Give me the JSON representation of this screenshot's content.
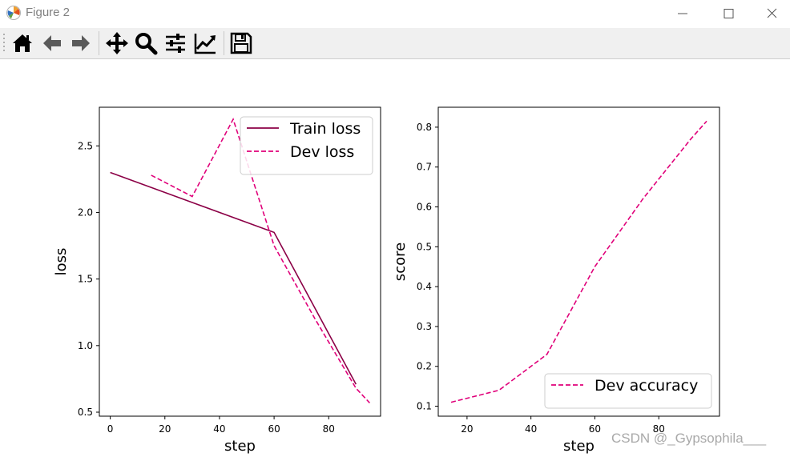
{
  "window": {
    "title": "Figure 2",
    "icon": "matplotlib-logo-icon",
    "controls": [
      "minimize-icon",
      "maximize-icon",
      "close-icon"
    ]
  },
  "toolbar": {
    "buttons": [
      {
        "name": "home",
        "icon": "home-icon"
      },
      {
        "name": "back",
        "icon": "arrow-left-icon"
      },
      {
        "name": "forward",
        "icon": "arrow-right-icon"
      },
      {
        "name": "pan",
        "icon": "move-arrows-icon"
      },
      {
        "name": "zoom",
        "icon": "magnifier-icon"
      },
      {
        "name": "subplots",
        "icon": "sliders-icon"
      },
      {
        "name": "edit-axis",
        "icon": "line-chart-icon"
      },
      {
        "name": "save",
        "icon": "floppy-disk-icon"
      }
    ]
  },
  "colors": {
    "train": "#8b0046",
    "dev": "#e0007a"
  },
  "chart_data": [
    {
      "type": "line",
      "title": "",
      "xlabel": "step",
      "ylabel": "loss",
      "xlim": [
        -4,
        99
      ],
      "ylim": [
        0.47,
        2.79
      ],
      "xticks": [
        0,
        20,
        40,
        60,
        80
      ],
      "yticks": [
        0.5,
        1.0,
        1.5,
        2.0,
        2.5
      ],
      "legend_position": "top-right",
      "grid": false,
      "series": [
        {
          "name": "Train loss",
          "style": "solid",
          "x": [
            0,
            60,
            90
          ],
          "y": [
            2.3,
            1.85,
            0.71
          ]
        },
        {
          "name": "Dev loss",
          "style": "dashed",
          "x": [
            15,
            30,
            45,
            60,
            75,
            90,
            95
          ],
          "y": [
            2.28,
            2.12,
            2.7,
            1.75,
            1.2,
            0.68,
            0.57
          ]
        }
      ]
    },
    {
      "type": "line",
      "title": "",
      "xlabel": "step",
      "ylabel": "score",
      "xlim": [
        11,
        99
      ],
      "ylim": [
        0.075,
        0.85
      ],
      "xticks": [
        20,
        40,
        60,
        80
      ],
      "yticks": [
        0.1,
        0.2,
        0.3,
        0.4,
        0.5,
        0.6,
        0.7,
        0.8
      ],
      "legend_position": "bottom-right",
      "grid": false,
      "series": [
        {
          "name": "Dev accuracy",
          "style": "dashed",
          "x": [
            15,
            30,
            45,
            60,
            75,
            90,
            95
          ],
          "y": [
            0.11,
            0.14,
            0.23,
            0.45,
            0.62,
            0.77,
            0.815
          ]
        }
      ]
    }
  ],
  "watermark": "CSDN @_Gypsophila___"
}
